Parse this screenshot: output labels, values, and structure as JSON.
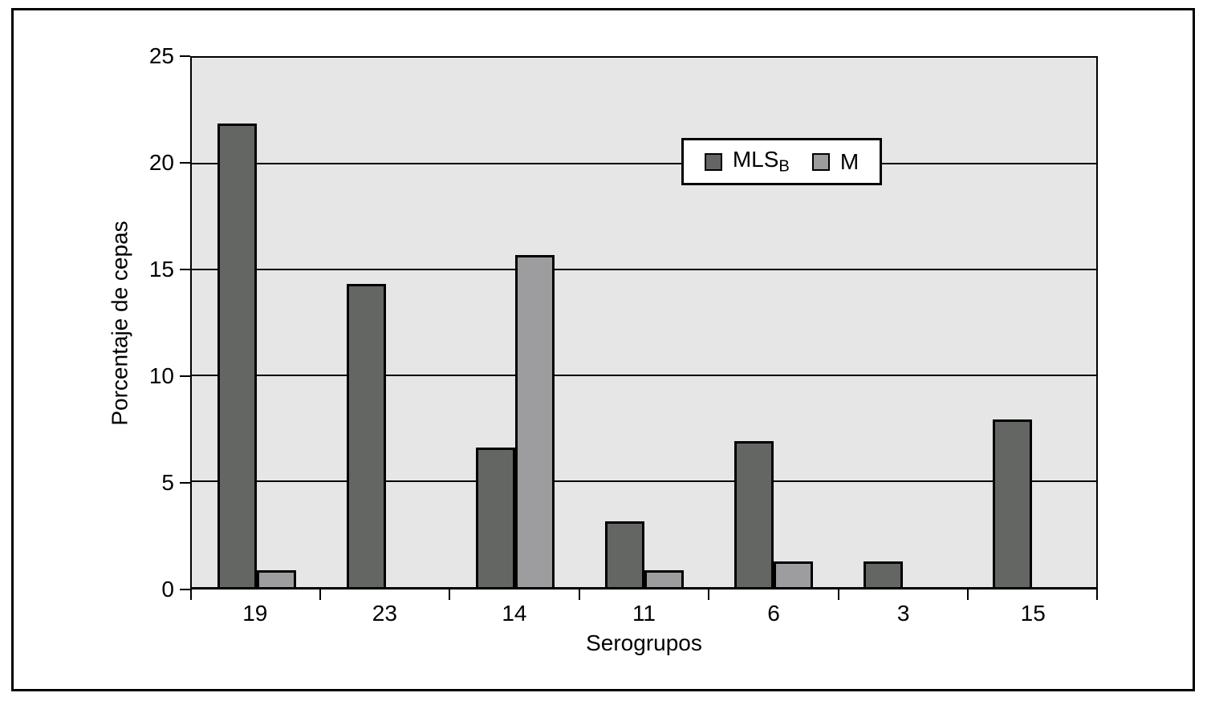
{
  "legend": {
    "mlsb_label": "MLS",
    "mlsb_subscript": "B",
    "m_label": "M"
  },
  "colors": {
    "mlsb_fill": "#636663",
    "m_fill": "#9d9da0",
    "plot_background": "#e6e6e6",
    "axis_line": "#000000",
    "figure_background": "#ffffff"
  },
  "chart_data": {
    "type": "bar",
    "categories": [
      "19",
      "23",
      "14",
      "11",
      "6",
      "3",
      "15"
    ],
    "series": [
      {
        "name": "MLSB",
        "values": [
          21.9,
          14.3,
          6.6,
          3.1,
          6.9,
          1.2,
          7.9
        ]
      },
      {
        "name": "M",
        "values": [
          0.8,
          0,
          15.7,
          0.8,
          1.2,
          0,
          0
        ]
      }
    ],
    "title": "",
    "xlabel": "Serogrupos",
    "ylabel": "Porcentaje de cepas",
    "ylim": [
      0,
      25
    ],
    "yticks": [
      0,
      5,
      10,
      15,
      20,
      25
    ],
    "grid": true,
    "legend_position": "inside-top-center"
  }
}
